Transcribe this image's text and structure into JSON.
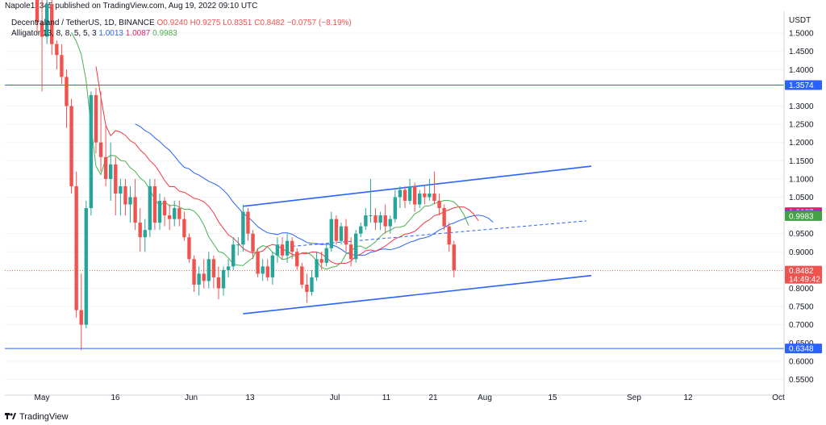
{
  "header": {
    "publisher": "Napole12345 published on TradingView.com, Aug 19, 2022 09:10 UTC"
  },
  "legend": {
    "symbol": "Decentraland / TetherUS, 1D, BINANCE",
    "ohlc": "O0.9240 H0.9275 L0.8351 C0.8482 −0.0757 (−8.19%)",
    "alligator_label": "Alligator 13, 8, 8, 5, 5, 3",
    "jaw": "1.0013",
    "teeth": "1.0087",
    "lips": "0.9983"
  },
  "price_axis": {
    "currency": "USDT",
    "ticks": [
      "1.5000",
      "1.4500",
      "1.4000",
      "1.3000",
      "1.2500",
      "1.2000",
      "1.1500",
      "1.1000",
      "1.0500",
      "0.9500",
      "0.9000",
      "0.8000",
      "0.7500",
      "0.7000",
      "0.6500",
      "0.6000",
      "0.5500"
    ]
  },
  "time_axis": {
    "labels": [
      "May",
      "16",
      "Jun",
      "13",
      "Jul",
      "11",
      "21",
      "Aug",
      "15",
      "Sep",
      "12",
      "Oct"
    ]
  },
  "badges": {
    "resistance": "1.3574",
    "support": "0.6348",
    "teeth": "1.0087",
    "jaw": "1.0013",
    "lips": "0.9983",
    "last_price": "0.8482",
    "countdown": "14:49:42"
  },
  "colors": {
    "up": "#26a69a",
    "down": "#ef5350",
    "jaw": "#2962ff",
    "teeth": "#f23645",
    "lips": "#4caf50",
    "hline": "#2962ff",
    "channel": "#2962ff"
  },
  "chart_data": {
    "type": "candlestick",
    "symbol": "MANA/USDT",
    "interval": "1D",
    "ylim": [
      0.52,
      1.56
    ],
    "x_labels": [
      "May",
      "16",
      "Jun",
      "13",
      "Jul",
      "11",
      "21",
      "Aug",
      "15",
      "Sep",
      "12",
      "Oct"
    ],
    "horizontal_levels": [
      1.3574,
      0.6348
    ],
    "last_price": 0.8482,
    "candles": [
      [
        1.62,
        1.64,
        1.5,
        1.53
      ],
      [
        1.53,
        1.6,
        1.34,
        1.49
      ],
      [
        1.49,
        1.61,
        1.47,
        1.58
      ],
      [
        1.58,
        1.62,
        1.44,
        1.47
      ],
      [
        1.47,
        1.48,
        1.4,
        1.44
      ],
      [
        1.44,
        1.47,
        1.36,
        1.38
      ],
      [
        1.38,
        1.4,
        1.24,
        1.3
      ],
      [
        1.3,
        1.32,
        1.06,
        1.08
      ],
      [
        1.08,
        1.12,
        0.72,
        0.74
      ],
      [
        0.74,
        0.84,
        0.63,
        0.7
      ],
      [
        0.7,
        1.04,
        0.69,
        1.02
      ],
      [
        1.02,
        1.34,
        1.0,
        1.33
      ],
      [
        1.33,
        1.35,
        1.17,
        1.2
      ],
      [
        1.2,
        1.34,
        1.12,
        1.16
      ],
      [
        1.16,
        1.25,
        1.08,
        1.1
      ],
      [
        1.1,
        1.2,
        1.04,
        1.14
      ],
      [
        1.14,
        1.16,
        1.0,
        1.06
      ],
      [
        1.06,
        1.1,
        1.0,
        1.08
      ],
      [
        1.08,
        1.1,
        1.0,
        1.03
      ],
      [
        1.03,
        1.08,
        0.98,
        1.05
      ],
      [
        1.05,
        1.1,
        0.96,
        0.98
      ],
      [
        0.98,
        1.02,
        0.9,
        0.94
      ],
      [
        0.94,
        0.99,
        0.9,
        0.96
      ],
      [
        0.96,
        1.1,
        0.94,
        1.08
      ],
      [
        1.08,
        1.1,
        0.96,
        0.98
      ],
      [
        0.98,
        1.06,
        0.96,
        1.04
      ],
      [
        1.04,
        1.05,
        0.97,
        1.0
      ],
      [
        1.0,
        1.03,
        0.96,
        0.99
      ],
      [
        0.99,
        1.04,
        0.97,
        1.02
      ],
      [
        1.02,
        1.04,
        0.97,
        0.99
      ],
      [
        0.99,
        1.01,
        0.93,
        0.94
      ],
      [
        0.94,
        0.95,
        0.87,
        0.88
      ],
      [
        0.88,
        0.89,
        0.79,
        0.81
      ],
      [
        0.81,
        0.86,
        0.78,
        0.84
      ],
      [
        0.84,
        0.88,
        0.8,
        0.82
      ],
      [
        0.82,
        0.9,
        0.8,
        0.88
      ],
      [
        0.88,
        0.89,
        0.8,
        0.83
      ],
      [
        0.83,
        0.86,
        0.77,
        0.8
      ],
      [
        0.8,
        0.86,
        0.78,
        0.85
      ],
      [
        0.85,
        0.88,
        0.83,
        0.86
      ],
      [
        0.86,
        0.94,
        0.85,
        0.92
      ],
      [
        0.92,
        0.94,
        0.89,
        0.92
      ],
      [
        0.92,
        1.03,
        0.9,
        1.01
      ],
      [
        1.01,
        1.02,
        0.93,
        0.95
      ],
      [
        0.95,
        0.96,
        0.88,
        0.9
      ],
      [
        0.9,
        0.91,
        0.83,
        0.84
      ],
      [
        0.84,
        0.88,
        0.82,
        0.86
      ],
      [
        0.86,
        0.88,
        0.82,
        0.83
      ],
      [
        0.83,
        0.9,
        0.81,
        0.89
      ],
      [
        0.89,
        0.94,
        0.87,
        0.92
      ],
      [
        0.92,
        0.94,
        0.88,
        0.89
      ],
      [
        0.89,
        0.95,
        0.87,
        0.93
      ],
      [
        0.93,
        0.94,
        0.88,
        0.9
      ],
      [
        0.9,
        0.91,
        0.85,
        0.86
      ],
      [
        0.86,
        0.87,
        0.8,
        0.81
      ],
      [
        0.81,
        0.84,
        0.76,
        0.79
      ],
      [
        0.79,
        0.85,
        0.78,
        0.83
      ],
      [
        0.83,
        0.9,
        0.82,
        0.88
      ],
      [
        0.88,
        0.9,
        0.85,
        0.87
      ],
      [
        0.87,
        0.92,
        0.86,
        0.91
      ],
      [
        0.91,
        1.01,
        0.9,
        0.99
      ],
      [
        0.99,
        1.0,
        0.92,
        0.93
      ],
      [
        0.93,
        0.98,
        0.92,
        0.97
      ],
      [
        0.97,
        0.99,
        0.9,
        0.92
      ],
      [
        0.92,
        0.94,
        0.86,
        0.88
      ],
      [
        0.88,
        0.96,
        0.87,
        0.95
      ],
      [
        0.95,
        0.98,
        0.94,
        0.97
      ],
      [
        0.97,
        1.02,
        0.96,
        1.0
      ],
      [
        1.0,
        1.1,
        0.98,
        1.0
      ],
      [
        1.0,
        1.02,
        0.96,
        0.98
      ],
      [
        0.98,
        1.01,
        0.96,
        1.0
      ],
      [
        1.0,
        1.03,
        0.95,
        0.97
      ],
      [
        0.97,
        1.0,
        0.95,
        0.99
      ],
      [
        0.99,
        1.07,
        0.98,
        1.05
      ],
      [
        1.05,
        1.08,
        1.02,
        1.07
      ],
      [
        1.07,
        1.08,
        1.02,
        1.04
      ],
      [
        1.04,
        1.1,
        1.03,
        1.08
      ],
      [
        1.08,
        1.09,
        1.01,
        1.03
      ],
      [
        1.03,
        1.07,
        1.02,
        1.06
      ],
      [
        1.06,
        1.08,
        1.03,
        1.05
      ],
      [
        1.05,
        1.1,
        1.04,
        1.06
      ],
      [
        1.06,
        1.12,
        1.03,
        1.04
      ],
      [
        1.04,
        1.06,
        1.0,
        1.02
      ],
      [
        1.02,
        1.03,
        0.96,
        0.97
      ],
      [
        0.97,
        0.98,
        0.9,
        0.92
      ],
      [
        0.92,
        0.93,
        0.83,
        0.85
      ]
    ]
  }
}
